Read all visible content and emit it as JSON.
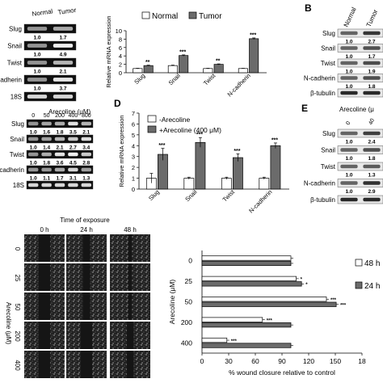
{
  "panel_a": {
    "col_labels": [
      "Normal",
      "Tumor"
    ],
    "rows": [
      {
        "label": "Slug",
        "values": [
          "1.0",
          "1.7"
        ]
      },
      {
        "label": "Snail",
        "values": [
          "1.0",
          "4.9"
        ]
      },
      {
        "label": "Twist",
        "values": [
          "1.0",
          "2.1"
        ]
      },
      {
        "label": "cadherin",
        "values": [
          "1.0",
          "3.7"
        ]
      },
      {
        "label": "18S",
        "values": []
      }
    ]
  },
  "panel_b": {
    "letter": "B",
    "col_labels": [
      "Normal",
      "Tumor"
    ],
    "rows": [
      {
        "label": "Slug",
        "values": [
          "1.0",
          "2.7"
        ]
      },
      {
        "label": "Snail",
        "values": [
          "1.0",
          "1.7"
        ]
      },
      {
        "label": "Twist",
        "values": [
          "1.0",
          "1.9"
        ]
      },
      {
        "label": "N-cadherin",
        "values": [
          "1.0",
          "1.8"
        ]
      },
      {
        "label": "β-tubulin",
        "values": []
      }
    ]
  },
  "panel_c": {
    "header": "Arecoline (μM)",
    "doses": [
      "0",
      "50",
      "200",
      "400",
      "800"
    ],
    "rows": [
      {
        "label": "Slug",
        "values": [
          "1.0",
          "1.6",
          "1.8",
          "3.5",
          "2.1"
        ]
      },
      {
        "label": "Snail",
        "values": [
          "1.0",
          "1.4",
          "2.1",
          "2.7",
          "3.4"
        ]
      },
      {
        "label": "Twist",
        "values": [
          "1.0",
          "1.8",
          "3.6",
          "4.5",
          "2.8"
        ]
      },
      {
        "label": "cadherin",
        "values": [
          "1.0",
          "1.1",
          "1.7",
          "3.1",
          "1.3"
        ]
      },
      {
        "label": "18S",
        "values": []
      }
    ]
  },
  "panel_d": {
    "letter": "D"
  },
  "panel_e": {
    "letter": "E",
    "header": "Arecoline (μ",
    "doses": [
      "0",
      "40"
    ],
    "rows": [
      {
        "label": "Slug",
        "values": [
          "1.0",
          "2.4"
        ]
      },
      {
        "label": "Snail",
        "values": [
          "1.0",
          "1.8"
        ]
      },
      {
        "label": "Twist",
        "values": [
          "1.0",
          "1.3"
        ]
      },
      {
        "label": "N-cadherin",
        "values": [
          "1.0",
          "2.9"
        ]
      },
      {
        "label": "β-tubulin",
        "values": []
      }
    ]
  },
  "panel_f": {
    "title": "Time of exposure",
    "times": [
      "0 h",
      "24 h",
      "48 h"
    ],
    "row_labels": [
      "0",
      "25",
      "50",
      "200",
      "400"
    ],
    "ylabel": "Arecoline (μM)"
  },
  "chart_data": [
    {
      "type": "bar",
      "categories": [
        "Slug",
        "Snail",
        "Twist",
        "N-cadherin"
      ],
      "series": [
        {
          "name": "Normal",
          "values": [
            1.0,
            1.7,
            1.0,
            1.0
          ],
          "color": "#ffffff"
        },
        {
          "name": "Tumor",
          "values": [
            1.7,
            4.1,
            2.0,
            8.1
          ],
          "color": "#6b6b6b"
        }
      ],
      "errors": [
        [
          0.06,
          0.1,
          0.06,
          0.05
        ],
        [
          0.1,
          0.15,
          0.1,
          0.18
        ]
      ],
      "significance": [
        "**",
        "***",
        "**",
        "***"
      ],
      "ylabel": "Relative mRNA expression",
      "ylim": [
        0,
        10
      ],
      "yticks": [
        "0",
        "2",
        "4",
        "6",
        "8",
        "10"
      ],
      "legend_position": "top"
    },
    {
      "type": "bar",
      "categories": [
        "Slug",
        "Snail",
        "Twist",
        "N-cadherin"
      ],
      "series": [
        {
          "name": "-Arecoline",
          "values": [
            1.0,
            1.0,
            1.0,
            1.0
          ],
          "color": "#ffffff"
        },
        {
          "name": "+Arecoline (400 μM)",
          "values": [
            3.2,
            4.3,
            2.9,
            4.0
          ],
          "color": "#6b6b6b"
        }
      ],
      "errors": [
        [
          0.45,
          0.1,
          0.1,
          0.1
        ],
        [
          0.55,
          0.45,
          0.35,
          0.25
        ]
      ],
      "significance": [
        "***",
        "***",
        "***",
        "***"
      ],
      "ylabel": "Relative mRNA expression",
      "ylim": [
        0,
        7
      ],
      "yticks": [
        "0",
        "1",
        "2",
        "3",
        "4",
        "5",
        "6",
        "7"
      ],
      "legend_position": "top-left"
    },
    {
      "type": "bar",
      "orientation": "horizontal",
      "categories": [
        "0",
        "25",
        "50",
        "200",
        "400"
      ],
      "series": [
        {
          "name": "48 h",
          "values": [
            100,
            106,
            140,
            68,
            28
          ],
          "color": "#ffffff"
        },
        {
          "name": "24 h",
          "values": [
            100,
            112,
            151,
            100,
            100
          ],
          "color": "#6b6b6b"
        }
      ],
      "significance": [
        [
          "",
          ""
        ],
        [
          "*",
          "*"
        ],
        [
          "***",
          "***"
        ],
        [
          "***",
          ""
        ],
        [
          "***",
          ""
        ]
      ],
      "xlabel": "% wound closure relative to control",
      "ylabel": "Arecoline (μM)",
      "xlim": [
        0,
        180
      ],
      "xticks": [
        "0",
        "30",
        "60",
        "90",
        "120",
        "150",
        "18"
      ],
      "legend_position": "right"
    }
  ]
}
